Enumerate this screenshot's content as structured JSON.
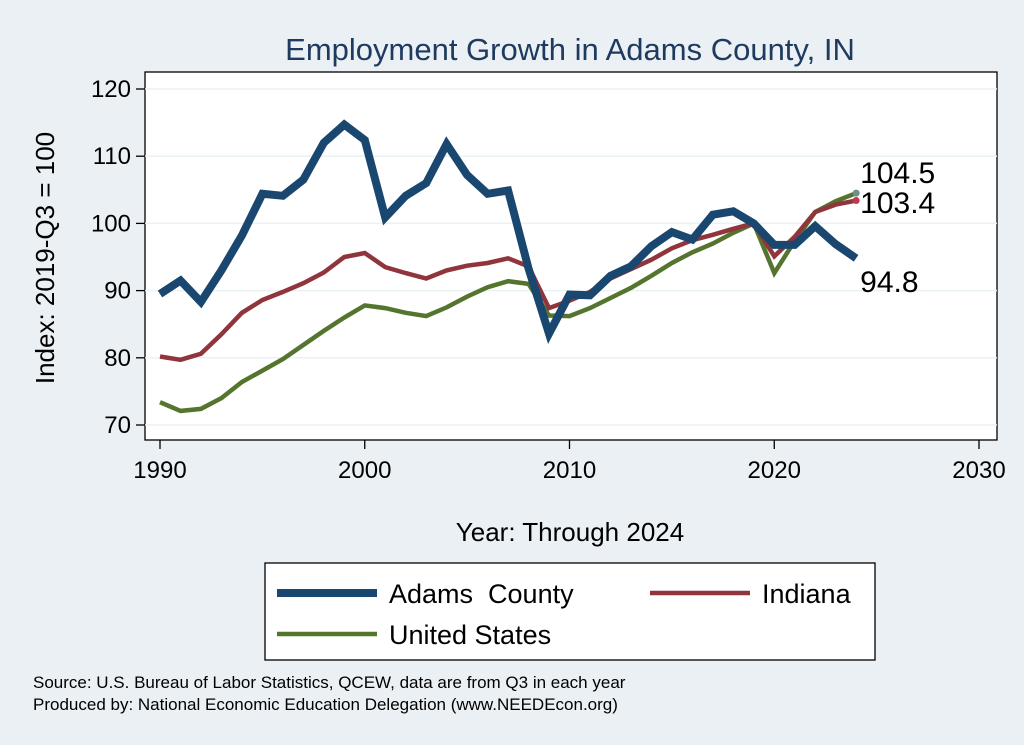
{
  "chart_data": {
    "type": "line",
    "title": "Employment Growth in Adams County, IN",
    "xlabel": "Year: Through 2024",
    "ylabel": "Index: 2019-Q3 = 100",
    "xlim": [
      1990,
      2030
    ],
    "ylim": [
      70,
      120
    ],
    "xticks": [
      1990,
      2000,
      2010,
      2020,
      2030
    ],
    "yticks": [
      70,
      80,
      90,
      100,
      110,
      120
    ],
    "x": [
      1990,
      1991,
      1992,
      1993,
      1994,
      1995,
      1996,
      1997,
      1998,
      1999,
      2000,
      2001,
      2002,
      2003,
      2004,
      2005,
      2006,
      2007,
      2008,
      2009,
      2010,
      2011,
      2012,
      2013,
      2014,
      2015,
      2016,
      2017,
      2018,
      2019,
      2020,
      2021,
      2022,
      2023,
      2024
    ],
    "series": [
      {
        "name": "Adams  County",
        "color": "#1a476f",
        "values": [
          89.5,
          91.5,
          88.3,
          93.0,
          98.2,
          104.4,
          104.1,
          106.5,
          112.0,
          114.7,
          112.4,
          100.9,
          104.1,
          106.0,
          111.8,
          107.2,
          104.4,
          104.9,
          93.3,
          83.6,
          89.4,
          89.3,
          92.2,
          93.6,
          96.6,
          98.7,
          97.6,
          101.3,
          101.8,
          100.0,
          96.8,
          96.8,
          99.6,
          96.9,
          94.8
        ]
      },
      {
        "name": "Indiana",
        "color": "#90353b",
        "values": [
          80.2,
          79.7,
          80.6,
          83.5,
          86.7,
          88.6,
          89.8,
          91.1,
          92.7,
          95.0,
          95.6,
          93.5,
          92.6,
          91.8,
          93.0,
          93.7,
          94.1,
          94.8,
          93.6,
          87.4,
          88.5,
          89.8,
          91.8,
          93.2,
          94.6,
          96.3,
          97.5,
          98.3,
          99.2,
          100.0,
          95.1,
          98.0,
          101.7,
          102.8,
          103.4
        ]
      },
      {
        "name": "United States",
        "color": "#55752f",
        "values": [
          73.4,
          72.1,
          72.4,
          74.0,
          76.4,
          78.1,
          79.8,
          81.9,
          84.0,
          86.0,
          87.8,
          87.4,
          86.7,
          86.2,
          87.5,
          89.1,
          90.5,
          91.4,
          91.0,
          86.3,
          86.2,
          87.4,
          88.9,
          90.4,
          92.2,
          94.1,
          95.7,
          97.0,
          98.6,
          100.0,
          92.6,
          97.4,
          101.7,
          103.3,
          104.5
        ]
      }
    ],
    "end_labels": [
      "104.5",
      "103.4",
      "94.8"
    ],
    "grid": true,
    "legend_position": "bottom"
  },
  "source_note": "Source: U.S. Bureau of Labor Statistics, QCEW, data are from Q3 in each year",
  "producer_note": "Produced by: National Economic Education Delegation (www.NEEDEcon.org)"
}
